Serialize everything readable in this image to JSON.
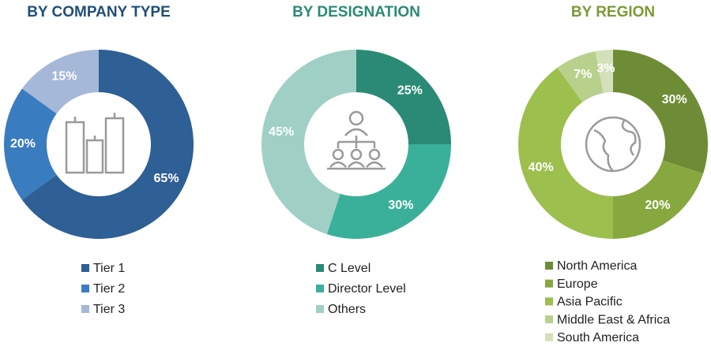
{
  "chart_data": [
    {
      "type": "pie",
      "title": "BY COMPANY TYPE",
      "title_color": "#1f4e79",
      "categories": [
        "Tier 1",
        "Tier 2",
        "Tier 3"
      ],
      "values": [
        65,
        20,
        15
      ],
      "value_labels": [
        "65%",
        "20%",
        "15%"
      ],
      "colors": [
        "#2e5f95",
        "#3a7cc0",
        "#a5b8d8"
      ]
    },
    {
      "type": "pie",
      "title": "BY DESIGNATION",
      "title_color": "#2a8a76",
      "categories": [
        "C Level",
        "Director Level",
        "Others"
      ],
      "values": [
        25,
        30,
        45
      ],
      "value_labels": [
        "25%",
        "30%",
        "45%"
      ],
      "colors": [
        "#2a8a76",
        "#3ab09a",
        "#a0d0c5"
      ]
    },
    {
      "type": "pie",
      "title": "BY REGION",
      "title_color": "#7a9a35",
      "categories": [
        "North America",
        "Europe",
        "Asia Pacific",
        "Middle East & Africa",
        "South America"
      ],
      "values": [
        30,
        20,
        40,
        7,
        3
      ],
      "value_labels": [
        "30%",
        "20%",
        "40%",
        "7%",
        "3%"
      ],
      "colors": [
        "#6e8c35",
        "#86a83f",
        "#9cbf4e",
        "#b9d08d",
        "#d3e0ba"
      ]
    }
  ]
}
